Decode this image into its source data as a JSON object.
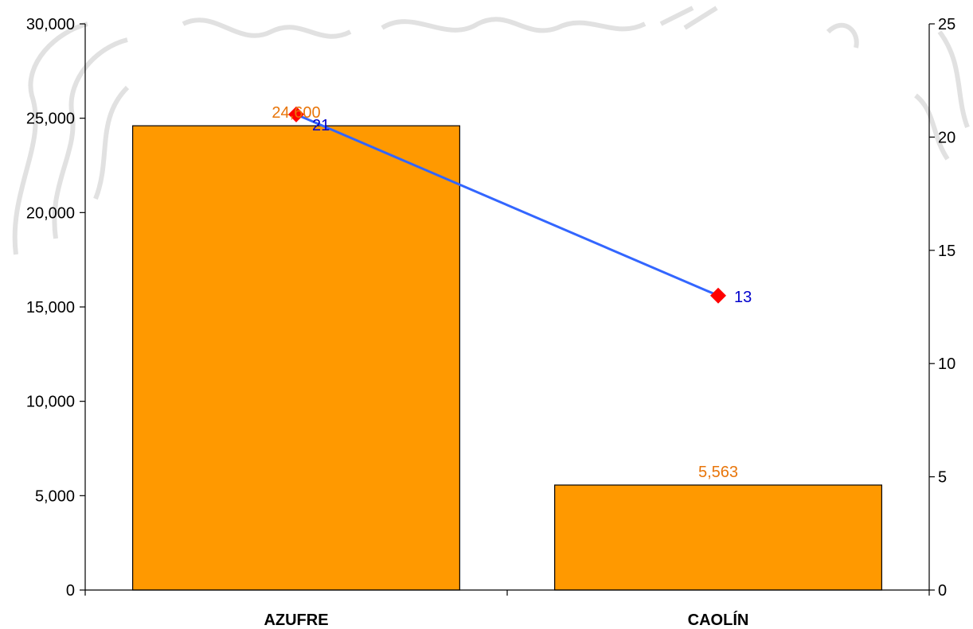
{
  "chart_data": {
    "type": "bar",
    "categories": [
      "AZUFRE",
      "CAOLÍN"
    ],
    "series": [
      {
        "kind": "bar",
        "axis": "left",
        "values": [
          24600,
          5563
        ],
        "labels": [
          "24,600",
          "5,563"
        ],
        "color": "#FF9900"
      },
      {
        "kind": "line",
        "axis": "right",
        "values": [
          21,
          13
        ],
        "labels": [
          "21",
          "13"
        ],
        "color": "#3366FF",
        "marker_color": "#FF0000"
      }
    ],
    "y_left": {
      "ylim": [
        0,
        30000
      ],
      "ticks": [
        0,
        5000,
        10000,
        15000,
        20000,
        25000,
        30000
      ],
      "tick_labels": [
        "0",
        "5,000",
        "10,000",
        "15,000",
        "20,000",
        "25,000",
        "30,000"
      ]
    },
    "y_right": {
      "ylim": [
        0,
        25
      ],
      "ticks": [
        0,
        5,
        10,
        15,
        20,
        25
      ],
      "tick_labels": [
        "0",
        "5",
        "10",
        "15",
        "20",
        "25"
      ]
    },
    "title": "",
    "xlabel": "",
    "ylabel": "",
    "grid": false,
    "colors": {
      "bar_label": "#E8750A",
      "line_label": "#0000CC",
      "axis": "#000000"
    }
  }
}
